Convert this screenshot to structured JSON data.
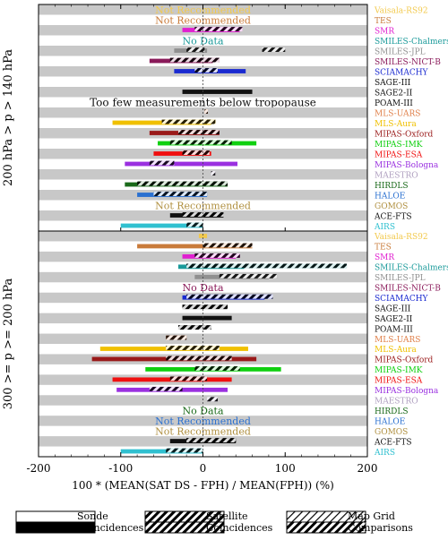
{
  "chart_data": [
    {
      "type": "bar",
      "panel_label": "200 hPa  > p > 140 hPa",
      "xlabel": "100 * (MEAN(SAT DS - FPH) / MEAN(FPH)) (%)",
      "xlim": [
        -200,
        200
      ],
      "xticks": [
        -200,
        -100,
        0,
        100,
        200
      ],
      "rows": [
        {
          "name": "Vaisala-RS92",
          "color": "#f2c94c",
          "note": "Not Recommended",
          "note_color": "#f2c94c",
          "bars": []
        },
        {
          "name": "TES",
          "color": "#c97b3a",
          "note": "Not Recommended",
          "note_color": "#c97b3a",
          "bars": []
        },
        {
          "name": "SMR",
          "color": "#e020d0",
          "bars": [
            {
              "style": "solid",
              "range": [
                -25,
                45
              ]
            },
            {
              "style": "hatch",
              "range": [
                -10,
                48
              ]
            }
          ]
        },
        {
          "name": "SMILES-Chalmers",
          "color": "#1a9a9a",
          "note": "No Data",
          "note_color": "#1a9a9a",
          "bars": []
        },
        {
          "name": "SMILES-JPL",
          "color": "#909090",
          "bars": [
            {
              "style": "solid",
              "range": [
                -35,
                5
              ]
            },
            {
              "style": "hatch",
              "range": [
                72,
                100
              ]
            },
            {
              "style": "hatch",
              "range": [
                -20,
                2
              ]
            }
          ]
        },
        {
          "name": "SMILES-NICT-B",
          "color": "#8a1a5a",
          "bars": [
            {
              "style": "solid",
              "range": [
                -65,
                12
              ]
            },
            {
              "style": "hatch",
              "range": [
                -40,
                20
              ]
            }
          ]
        },
        {
          "name": "SCIAMACHY",
          "color": "#1a2ad0",
          "bars": [
            {
              "style": "solid",
              "range": [
                -35,
                52
              ]
            },
            {
              "style": "hatch",
              "range": [
                -10,
                18
              ]
            }
          ]
        },
        {
          "name": "SAGE-III",
          "color": "#111111",
          "bars": []
        },
        {
          "name": "SAGE2-II",
          "color": "#111111",
          "bars": [
            {
              "style": "solid",
              "range": [
                -25,
                60
              ]
            }
          ]
        },
        {
          "name": "POAM-III",
          "color": "#111111",
          "note": "Too few measurements below tropopause",
          "note_color": "#111111",
          "bars": []
        },
        {
          "name": "MLS-UARS",
          "color": "#e0804a",
          "bars": [
            {
              "style": "hatch",
              "range": [
                2,
                6
              ]
            }
          ]
        },
        {
          "name": "MLS-Aura",
          "color": "#f0c000",
          "bars": [
            {
              "style": "solid",
              "range": [
                -110,
                10
              ]
            },
            {
              "style": "hatch",
              "range": [
                -50,
                15
              ]
            },
            {
              "style": "hatch",
              "range": [
                -5,
                15
              ]
            }
          ]
        },
        {
          "name": "MIPAS-Oxford",
          "color": "#9a1a1a",
          "bars": [
            {
              "style": "solid",
              "range": [
                -65,
                20
              ]
            },
            {
              "style": "hatch",
              "range": [
                -30,
                20
              ]
            }
          ]
        },
        {
          "name": "MIPAS-IMK",
          "color": "#10d010",
          "bars": [
            {
              "style": "solid",
              "range": [
                -55,
                65
              ]
            },
            {
              "style": "hatch",
              "range": [
                -40,
                35
              ]
            }
          ]
        },
        {
          "name": "MIPAS-ESA",
          "color": "#f01010",
          "bars": [
            {
              "style": "solid",
              "range": [
                -60,
                10
              ]
            },
            {
              "style": "hatch",
              "range": [
                -25,
                8
              ]
            }
          ]
        },
        {
          "name": "MIPAS-Bologna",
          "color": "#9a30e0",
          "bars": [
            {
              "style": "solid",
              "range": [
                -95,
                42
              ]
            },
            {
              "style": "hatch",
              "range": [
                -65,
                -35
              ]
            }
          ]
        },
        {
          "name": "MAESTRO",
          "color": "#b0a0c0",
          "bars": [
            {
              "style": "hatch",
              "range": [
                10,
                15
              ]
            }
          ]
        },
        {
          "name": "HIRDLS",
          "color": "#1a6a1a",
          "bars": [
            {
              "style": "solid",
              "range": [
                -95,
                30
              ]
            },
            {
              "style": "hatch",
              "range": [
                -80,
                30
              ]
            },
            {
              "style": "hatch",
              "range": [
                -5,
                25
              ]
            }
          ]
        },
        {
          "name": "HALOE",
          "color": "#2a70d0",
          "bars": [
            {
              "style": "solid",
              "range": [
                -80,
                5
              ]
            },
            {
              "style": "hatch",
              "range": [
                -60,
                5
              ]
            }
          ]
        },
        {
          "name": "GOMOS",
          "color": "#b09040",
          "note": "Not Recommended",
          "note_color": "#b09040",
          "bars": []
        },
        {
          "name": "ACE-FTS",
          "color": "#111111",
          "bars": [
            {
              "style": "solid",
              "range": [
                -40,
                25
              ]
            },
            {
              "style": "hatch",
              "range": [
                -25,
                25
              ]
            }
          ]
        },
        {
          "name": "AIRS",
          "color": "#30c0d0",
          "bars": [
            {
              "style": "solid",
              "range": [
                -100,
                0
              ]
            },
            {
              "style": "hatch",
              "range": [
                -20,
                0
              ]
            }
          ]
        }
      ]
    },
    {
      "type": "bar",
      "panel_label": "300 >= p >= 200 hPa",
      "xlabel": "100 * (MEAN(SAT DS - FPH) / MEAN(FPH)) (%)",
      "xlim": [
        -200,
        200
      ],
      "xticks": [
        -200,
        -100,
        0,
        100,
        200
      ],
      "rows": [
        {
          "name": "Vaisala-RS92",
          "color": "#f2c94c",
          "bars": [
            {
              "style": "solid",
              "range": [
                -5,
                5
              ]
            }
          ]
        },
        {
          "name": "TES",
          "color": "#c97b3a",
          "bars": [
            {
              "style": "solid",
              "range": [
                -80,
                60
              ]
            },
            {
              "style": "hatch",
              "range": [
                0,
                60
              ]
            }
          ]
        },
        {
          "name": "SMR",
          "color": "#e020d0",
          "bars": [
            {
              "style": "solid",
              "range": [
                -25,
                40
              ]
            },
            {
              "style": "hatch",
              "range": [
                -10,
                45
              ]
            }
          ]
        },
        {
          "name": "SMILES-Chalmers",
          "color": "#1a9a9a",
          "bars": [
            {
              "style": "solid",
              "range": [
                -30,
                50
              ]
            },
            {
              "style": "hatch",
              "range": [
                -20,
                175
              ]
            }
          ]
        },
        {
          "name": "SMILES-JPL",
          "color": "#909090",
          "bars": [
            {
              "style": "solid",
              "range": [
                -10,
                80
              ]
            },
            {
              "style": "hatch",
              "range": [
                20,
                90
              ]
            }
          ]
        },
        {
          "name": "SMILES-NICT-B",
          "color": "#8a1a5a",
          "note": "No Data",
          "note_color": "#8a1a5a",
          "bars": []
        },
        {
          "name": "SCIAMACHY",
          "color": "#1a2ad0",
          "bars": [
            {
              "style": "solid",
              "range": [
                -25,
                75
              ]
            },
            {
              "style": "hatch",
              "range": [
                -20,
                85
              ]
            }
          ]
        },
        {
          "name": "SAGE-III",
          "color": "#111111",
          "bars": [
            {
              "style": "hatch",
              "range": [
                -25,
                30
              ]
            }
          ]
        },
        {
          "name": "SAGE2-II",
          "color": "#111111",
          "bars": [
            {
              "style": "solid",
              "range": [
                -25,
                35
              ]
            }
          ]
        },
        {
          "name": "POAM-III",
          "color": "#111111",
          "bars": [
            {
              "style": "hatch",
              "range": [
                -30,
                10
              ]
            }
          ]
        },
        {
          "name": "MLS-UARS",
          "color": "#e0804a",
          "bars": [
            {
              "style": "hatch",
              "range": [
                -45,
                -20
              ]
            }
          ]
        },
        {
          "name": "MLS-Aura",
          "color": "#f0c000",
          "bars": [
            {
              "style": "solid",
              "range": [
                -125,
                55
              ]
            },
            {
              "style": "hatch",
              "range": [
                -45,
                20
              ]
            }
          ]
        },
        {
          "name": "MIPAS-Oxford",
          "color": "#9a1a1a",
          "bars": [
            {
              "style": "solid",
              "range": [
                -135,
                65
              ]
            },
            {
              "style": "hatch",
              "range": [
                -45,
                35
              ]
            }
          ]
        },
        {
          "name": "MIPAS-IMK",
          "color": "#10d010",
          "bars": [
            {
              "style": "solid",
              "range": [
                -70,
                95
              ]
            },
            {
              "style": "hatch",
              "range": [
                -10,
                45
              ]
            }
          ]
        },
        {
          "name": "MIPAS-ESA",
          "color": "#f01010",
          "bars": [
            {
              "style": "solid",
              "range": [
                -110,
                35
              ]
            },
            {
              "style": "hatch",
              "range": [
                -40,
                5
              ]
            }
          ]
        },
        {
          "name": "MIPAS-Bologna",
          "color": "#9a30e0",
          "bars": [
            {
              "style": "solid",
              "range": [
                -105,
                30
              ]
            },
            {
              "style": "hatch",
              "range": [
                -65,
                -25
              ]
            }
          ]
        },
        {
          "name": "MAESTRO",
          "color": "#b0a0c0",
          "bars": [
            {
              "style": "hatch",
              "range": [
                5,
                18
              ]
            }
          ]
        },
        {
          "name": "HIRDLS",
          "color": "#1a6a1a",
          "note": "No Data",
          "note_color": "#1a6a1a",
          "bars": []
        },
        {
          "name": "HALOE",
          "color": "#2a70d0",
          "note": "Not Recommended",
          "note_color": "#2a70d0",
          "bars": []
        },
        {
          "name": "GOMOS",
          "color": "#b09040",
          "note": "Not Recommended",
          "note_color": "#b09040",
          "bars": []
        },
        {
          "name": "ACE-FTS",
          "color": "#111111",
          "bars": [
            {
              "style": "solid",
              "range": [
                -40,
                40
              ]
            },
            {
              "style": "hatch",
              "range": [
                -20,
                40
              ]
            }
          ]
        },
        {
          "name": "AIRS",
          "color": "#30c0d0",
          "bars": [
            {
              "style": "solid",
              "range": [
                -100,
                0
              ]
            },
            {
              "style": "hatch",
              "range": [
                -45,
                0
              ]
            }
          ]
        }
      ]
    }
  ],
  "legend": [
    {
      "pattern": "solid",
      "top": "Sonde",
      "bottom": "Coincidences"
    },
    {
      "pattern": "hatch",
      "top": "Satellite",
      "bottom": "Coincidences"
    },
    {
      "pattern": "light-hatch",
      "top": "Map Grid",
      "bottom": "Comparisons"
    }
  ]
}
